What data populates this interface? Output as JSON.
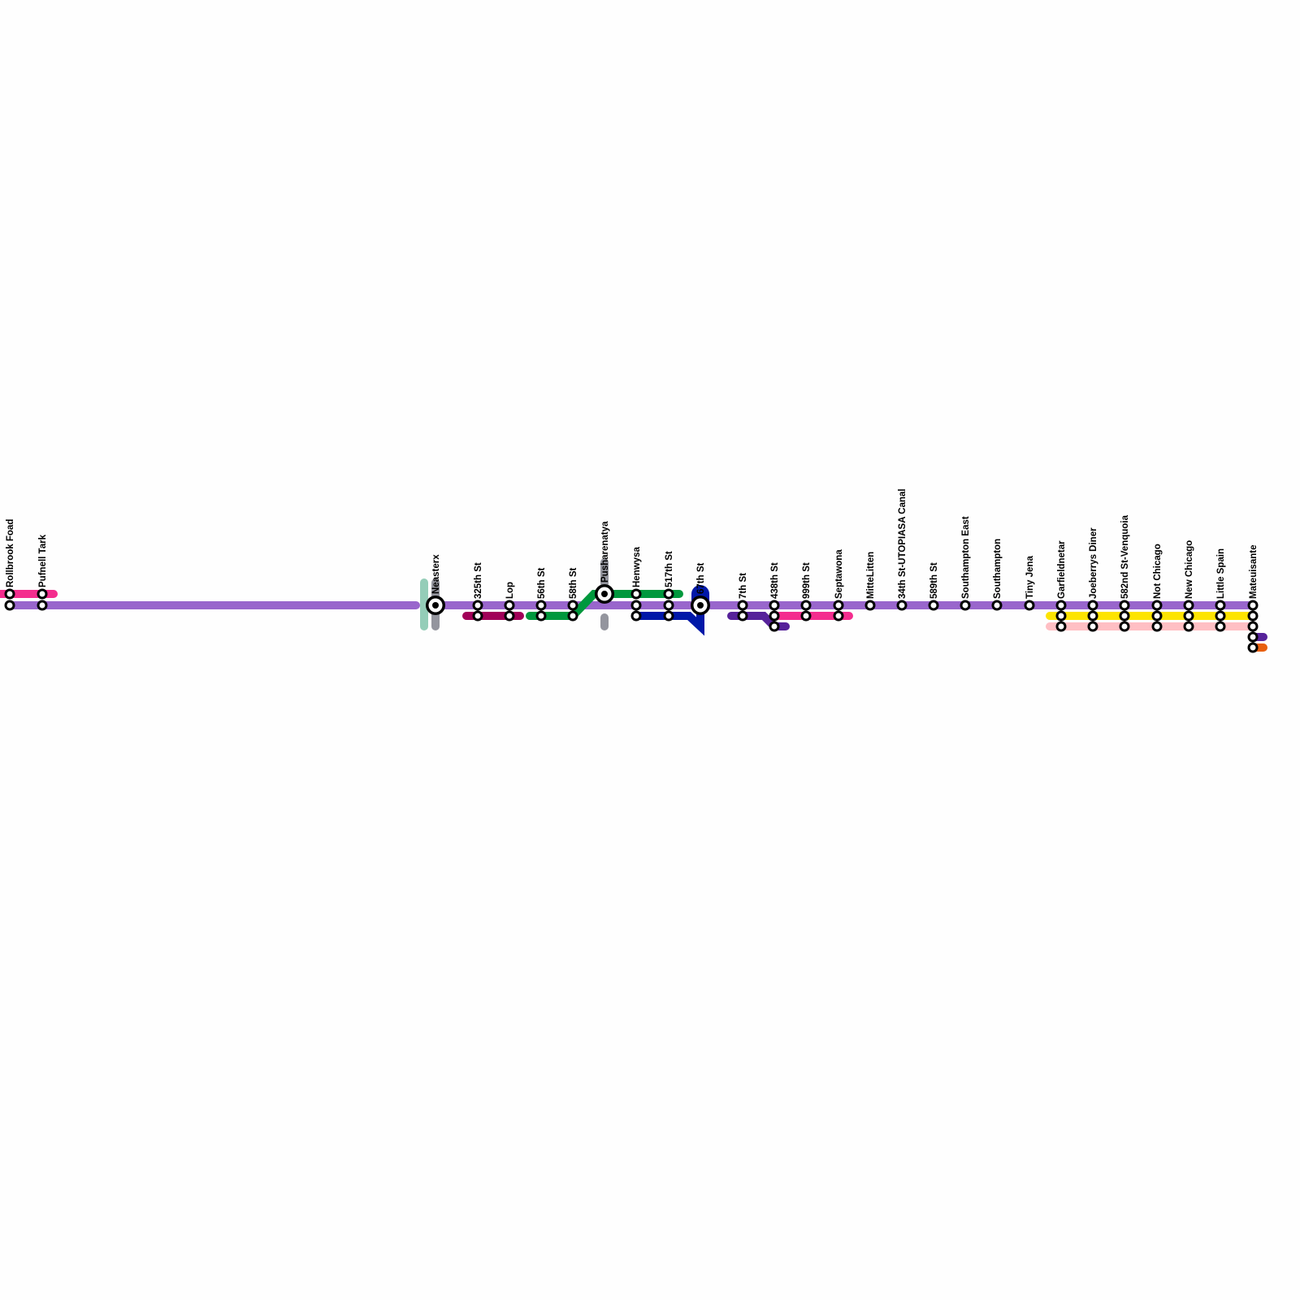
{
  "lines": {
    "main": "#9966cc",
    "pink": "#f42d8e",
    "teal": "#94cdb8",
    "gray": "#94959e",
    "maroon": "#a10058",
    "green": "#00983d",
    "blue": "#0018a8",
    "dark_purple": "#56229a",
    "yellow": "#fde400",
    "light_pink": "#ffbfc4",
    "orange": "#e8600f"
  },
  "stations": [
    {
      "name": "Rollbrook Foad"
    },
    {
      "name": "Pufnell Tark"
    },
    {
      "name": "Neasterx",
      "interchange": true
    },
    {
      "name": "325th St"
    },
    {
      "name": "Lop"
    },
    {
      "name": "56th St"
    },
    {
      "name": "58th St"
    },
    {
      "name": "Pusharenatya",
      "interchange": true
    },
    {
      "name": "Henwysa"
    },
    {
      "name": "517th St"
    },
    {
      "name": "67th St",
      "interchange": true
    },
    {
      "name": "7th St"
    },
    {
      "name": "438th St"
    },
    {
      "name": "999th St"
    },
    {
      "name": "Septawona"
    },
    {
      "name": "MitteLitten"
    },
    {
      "name": "34th St-UTOPIASA Canal"
    },
    {
      "name": "589th St"
    },
    {
      "name": "Southampton East"
    },
    {
      "name": "Southampton"
    },
    {
      "name": "Tiny Jena"
    },
    {
      "name": "Garfieldnetar"
    },
    {
      "name": "Joeberrys Diner"
    },
    {
      "name": "582nd St-Venquoia"
    },
    {
      "name": "Not Chicago"
    },
    {
      "name": "New Chicago"
    },
    {
      "name": "Little Spain"
    },
    {
      "name": "Mateuisante"
    }
  ]
}
